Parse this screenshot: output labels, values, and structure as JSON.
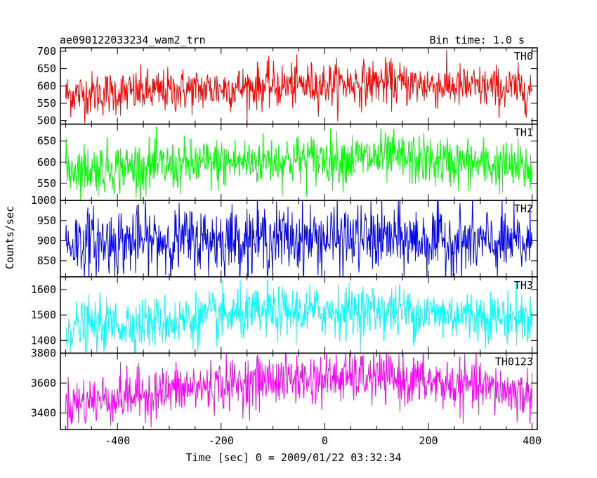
{
  "header": {
    "title": "ae090122033234_wam2_trn",
    "bin_time": "Bin time: 1.0 s"
  },
  "chart_data": {
    "type": "line",
    "xlabel": "Time [sec] 0 = 2009/01/22 03:32:34",
    "ylabel": "Counts/sec",
    "xlim": [
      -510,
      410
    ],
    "xticks": [
      -400,
      -200,
      0,
      200,
      400
    ],
    "x_start": -500,
    "x_end": 400,
    "x_step": 1,
    "grid": false,
    "panels": [
      {
        "name": "TH0",
        "color": "#ff0000",
        "ylim": [
          490,
          710
        ],
        "yticks": [
          500,
          550,
          600,
          650,
          700
        ],
        "trend": [
          {
            "x": -500,
            "y": 575
          },
          {
            "x": -300,
            "y": 585
          },
          {
            "x": -100,
            "y": 600
          },
          {
            "x": 100,
            "y": 610
          },
          {
            "x": 300,
            "y": 595
          },
          {
            "x": 400,
            "y": 590
          }
        ],
        "noise": 32
      },
      {
        "name": "TH1",
        "color": "#00ff00",
        "ylim": [
          510,
          690
        ],
        "yticks": [
          550,
          600,
          650
        ],
        "trend": [
          {
            "x": -500,
            "y": 585
          },
          {
            "x": -300,
            "y": 590
          },
          {
            "x": -100,
            "y": 605
          },
          {
            "x": 100,
            "y": 610
          },
          {
            "x": 300,
            "y": 595
          },
          {
            "x": 400,
            "y": 585
          }
        ],
        "noise": 30
      },
      {
        "name": "TH2",
        "color": "#0000ff",
        "ylim": [
          810,
          1000
        ],
        "yticks": [
          850,
          900,
          950,
          1000
        ],
        "trend": [
          {
            "x": -500,
            "y": 895
          },
          {
            "x": -300,
            "y": 900
          },
          {
            "x": -100,
            "y": 905
          },
          {
            "x": 100,
            "y": 905
          },
          {
            "x": 300,
            "y": 895
          },
          {
            "x": 400,
            "y": 890
          }
        ],
        "noise": 42
      },
      {
        "name": "TH3",
        "color": "#00ffff",
        "ylim": [
          1350,
          1650
        ],
        "yticks": [
          1400,
          1500,
          1600
        ],
        "trend": [
          {
            "x": -500,
            "y": 1450
          },
          {
            "x": -300,
            "y": 1475
          },
          {
            "x": -100,
            "y": 1510
          },
          {
            "x": 100,
            "y": 1520
          },
          {
            "x": 300,
            "y": 1495
          },
          {
            "x": 400,
            "y": 1485
          }
        ],
        "noise": 50
      },
      {
        "name": "TH0123",
        "color": "#ff00ff",
        "ylim": [
          3290,
          3800
        ],
        "yticks": [
          3400,
          3600,
          3800
        ],
        "trend": [
          {
            "x": -500,
            "y": 3460
          },
          {
            "x": -300,
            "y": 3550
          },
          {
            "x": -100,
            "y": 3620
          },
          {
            "x": 100,
            "y": 3640
          },
          {
            "x": 300,
            "y": 3570
          },
          {
            "x": 400,
            "y": 3520
          }
        ],
        "noise": 85
      }
    ]
  }
}
